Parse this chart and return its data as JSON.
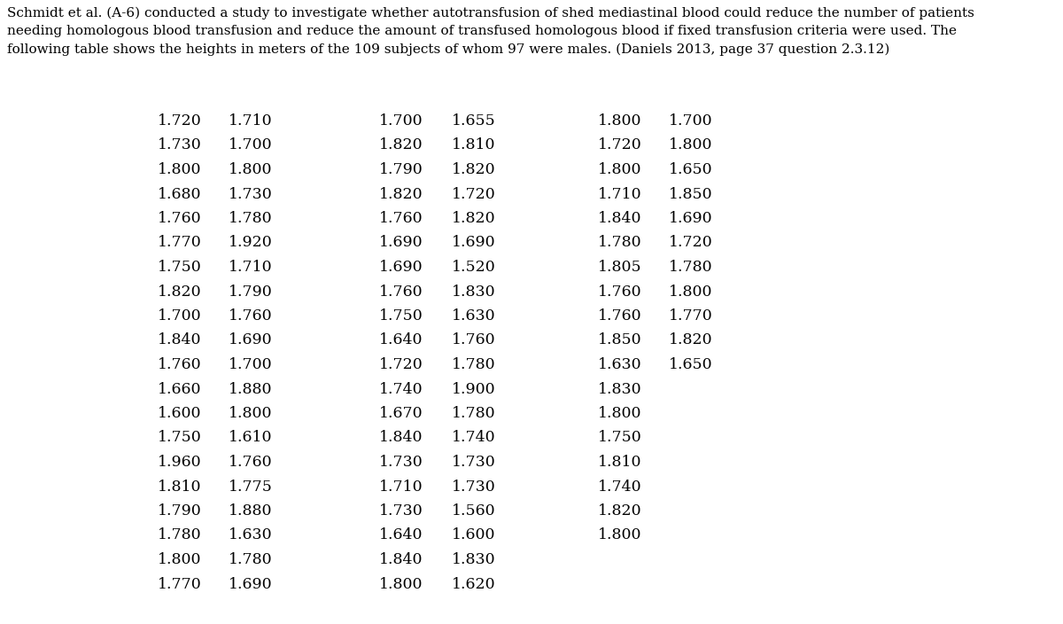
{
  "title": "Schmidt et al. (A-6) conducted a study to investigate whether autotransfusion of shed mediastinal blood could reduce the number of patients\nneeding homologous blood transfusion and reduce the amount of transfused homologous blood if fixed transfusion criteria were used. The\nfollowing table shows the heights in meters of the 109 subjects of whom 97 were males. (Daniels 2013, page 37 question 2.3.12)",
  "col1": [
    1.72,
    1.73,
    1.8,
    1.68,
    1.76,
    1.77,
    1.75,
    1.82,
    1.7,
    1.84,
    1.76,
    1.66,
    1.6,
    1.75,
    1.96,
    1.81,
    1.79,
    1.78,
    1.8,
    1.77
  ],
  "col2": [
    1.71,
    1.7,
    1.8,
    1.73,
    1.78,
    1.92,
    1.71,
    1.79,
    1.76,
    1.69,
    1.7,
    1.88,
    1.8,
    1.61,
    1.76,
    1.775,
    1.88,
    1.63,
    1.78,
    1.69
  ],
  "col3": [
    1.7,
    1.82,
    1.79,
    1.82,
    1.76,
    1.69,
    1.69,
    1.76,
    1.75,
    1.64,
    1.72,
    1.74,
    1.67,
    1.84,
    1.73,
    1.71,
    1.73,
    1.64,
    1.84,
    1.8
  ],
  "col4": [
    1.655,
    1.81,
    1.82,
    1.72,
    1.82,
    1.69,
    1.52,
    1.83,
    1.63,
    1.76,
    1.78,
    1.9,
    1.78,
    1.74,
    1.73,
    1.73,
    1.56,
    1.6,
    1.83,
    1.62
  ],
  "col5": [
    1.8,
    1.72,
    1.8,
    1.71,
    1.84,
    1.78,
    1.805,
    1.76,
    1.76,
    1.85,
    1.63,
    1.83,
    1.8,
    1.75,
    1.81,
    1.74,
    1.82,
    1.8,
    null,
    null
  ],
  "col6": [
    1.7,
    1.8,
    1.65,
    1.85,
    1.69,
    1.72,
    1.78,
    1.8,
    1.77,
    1.82,
    1.65,
    null,
    null,
    null,
    null,
    null,
    null,
    null,
    null,
    null
  ],
  "bg_color": "#ffffff",
  "text_color": "#000000",
  "title_fontsize": 11.0,
  "data_fontsize": 12.5,
  "title_font": "DejaVu Serif",
  "data_font": "DejaVu Serif"
}
